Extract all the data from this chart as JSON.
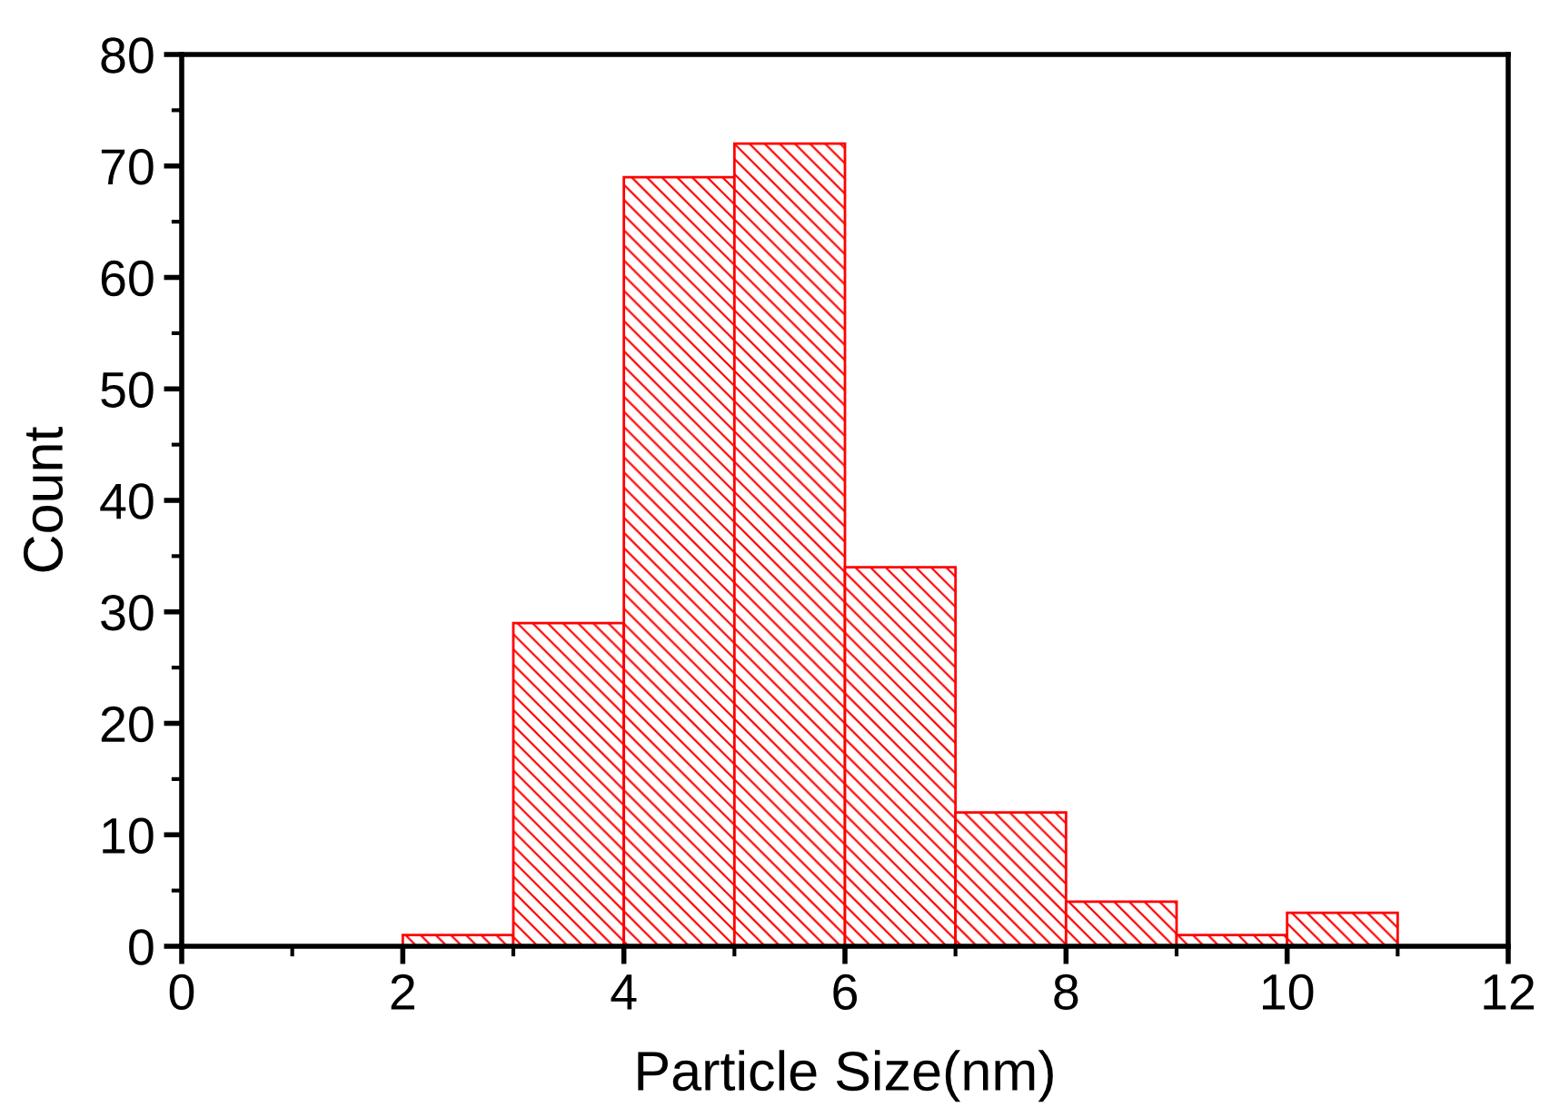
{
  "chart_data": {
    "type": "histogram",
    "xlabel": "Particle Size(nm)",
    "ylabel": "Count",
    "bins": [
      2,
      3,
      4,
      5,
      6,
      7,
      8,
      9,
      10,
      11
    ],
    "values": [
      1,
      29,
      69,
      72,
      34,
      12,
      4,
      1,
      3
    ],
    "color": "#ff0000",
    "xlim": [
      0,
      12
    ],
    "xticks": [
      0,
      2,
      4,
      6,
      8,
      10,
      12
    ],
    "ylim": [
      0,
      80
    ],
    "yticks": [
      0,
      10,
      20,
      30,
      40,
      50,
      60,
      70,
      80
    ],
    "grid": false
  }
}
